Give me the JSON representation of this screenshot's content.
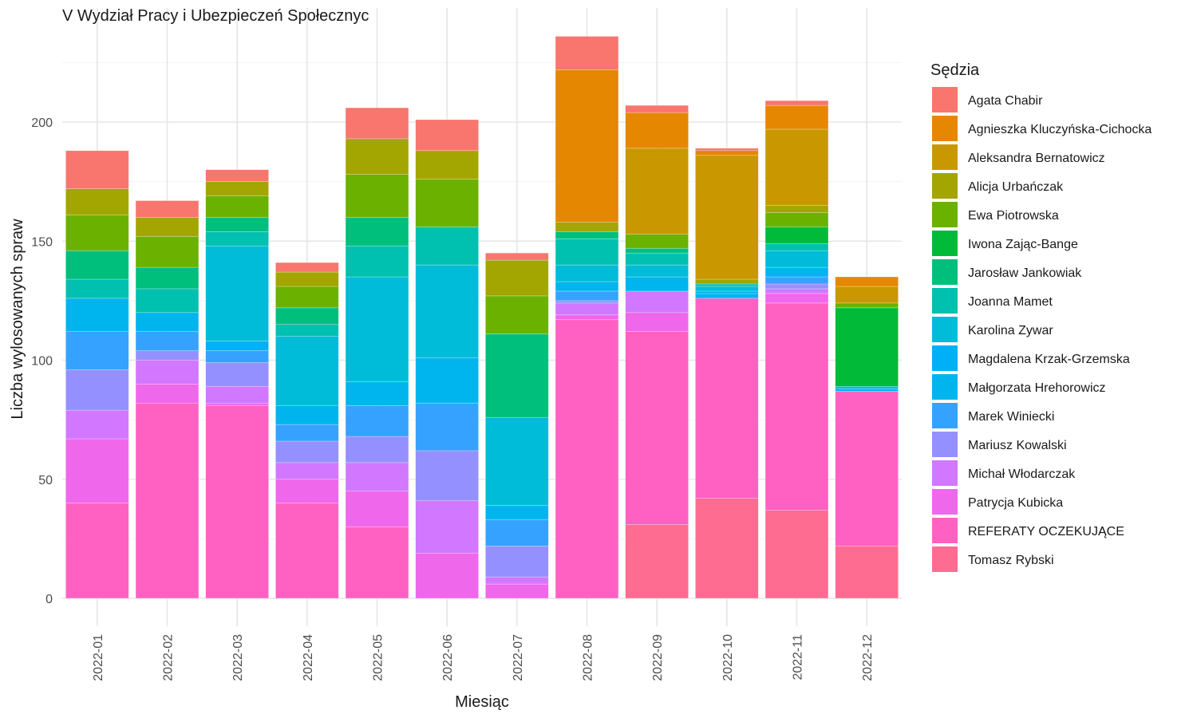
{
  "chart_data": {
    "type": "bar",
    "stacked": true,
    "title": "V Wydział Pracy i Ubezpieczeń Społecznyc",
    "xlabel": "Miesiąc",
    "ylabel": "Liczba wylosowanych spraw",
    "ylim": [
      0,
      240
    ],
    "yticks": [
      0,
      50,
      100,
      150,
      200
    ],
    "grid": true,
    "legend_title": "Sędzia",
    "legend_position": "right",
    "categories": [
      "2022-01",
      "2022-02",
      "2022-03",
      "2022-04",
      "2022-05",
      "2022-06",
      "2022-07",
      "2022-08",
      "2022-09",
      "2022-10",
      "2022-11",
      "2022-12"
    ],
    "series": [
      {
        "name": "Agata Chabir",
        "color": "#F8766D",
        "values": [
          16,
          7,
          5,
          4,
          13,
          13,
          3,
          14,
          3,
          1,
          2,
          0
        ]
      },
      {
        "name": "Agnieszka Kluczyńska-Cichocka",
        "color": "#E58700",
        "values": [
          0,
          0,
          0,
          0,
          0,
          0,
          0,
          64,
          15,
          2,
          10,
          4
        ]
      },
      {
        "name": "Aleksandra Bernatowicz",
        "color": "#C99800",
        "values": [
          0,
          0,
          0,
          0,
          0,
          0,
          0,
          0,
          36,
          52,
          32,
          7
        ]
      },
      {
        "name": "Alicja Urbańczak",
        "color": "#A3A500",
        "values": [
          11,
          8,
          6,
          6,
          15,
          12,
          15,
          4,
          0,
          2,
          3,
          0
        ]
      },
      {
        "name": "Ewa Piotrowska",
        "color": "#6BB100",
        "values": [
          15,
          13,
          9,
          9,
          18,
          20,
          16,
          0,
          6,
          0,
          6,
          2
        ]
      },
      {
        "name": "Iwona Zając-Bange",
        "color": "#00BA38",
        "values": [
          0,
          0,
          0,
          0,
          0,
          0,
          0,
          0,
          0,
          0,
          7,
          33
        ]
      },
      {
        "name": "Jarosław Jankowiak",
        "color": "#00BF7D",
        "values": [
          12,
          9,
          6,
          7,
          12,
          0,
          35,
          3,
          2,
          0,
          0,
          0
        ]
      },
      {
        "name": "Joanna Mamet",
        "color": "#00C0AF",
        "values": [
          8,
          10,
          6,
          5,
          13,
          16,
          0,
          11,
          5,
          1,
          3,
          0
        ]
      },
      {
        "name": "Karolina Zywar",
        "color": "#00BCD8",
        "values": [
          0,
          0,
          40,
          29,
          44,
          39,
          37,
          7,
          5,
          2,
          7,
          1
        ]
      },
      {
        "name": "Magdalena Krzak-Grzemska",
        "color": "#00B0F6",
        "values": [
          0,
          0,
          4,
          0,
          0,
          0,
          0,
          0,
          0,
          1,
          0,
          1
        ]
      },
      {
        "name": "Małgorzata Hrehorowicz",
        "color": "#00B5EE",
        "values": [
          14,
          8,
          0,
          8,
          10,
          19,
          6,
          4,
          6,
          2,
          4,
          0
        ]
      },
      {
        "name": "Marek Winiecki",
        "color": "#35A2FF",
        "values": [
          16,
          8,
          5,
          7,
          13,
          20,
          11,
          4,
          0,
          0,
          3,
          0
        ]
      },
      {
        "name": "Mariusz Kowalski",
        "color": "#9590FF",
        "values": [
          17,
          4,
          10,
          9,
          11,
          21,
          13,
          1,
          0,
          0,
          2,
          0
        ]
      },
      {
        "name": "Michał Włodarczak",
        "color": "#D277FF",
        "values": [
          12,
          10,
          7,
          7,
          12,
          22,
          3,
          5,
          9,
          0,
          2,
          0
        ]
      },
      {
        "name": "Patrycja Kubicka",
        "color": "#EF67EB",
        "values": [
          27,
          8,
          1,
          10,
          15,
          19,
          6,
          2,
          8,
          0,
          4,
          0
        ]
      },
      {
        "name": "REFERATY OCZEKUJĄCE",
        "color": "#FF61C3",
        "values": [
          40,
          82,
          81,
          40,
          30,
          0,
          0,
          117,
          81,
          84,
          87,
          65
        ]
      },
      {
        "name": "Tomasz Rybski",
        "color": "#FF6C91",
        "values": [
          0,
          0,
          0,
          0,
          0,
          0,
          0,
          0,
          31,
          42,
          37,
          22
        ]
      }
    ]
  }
}
